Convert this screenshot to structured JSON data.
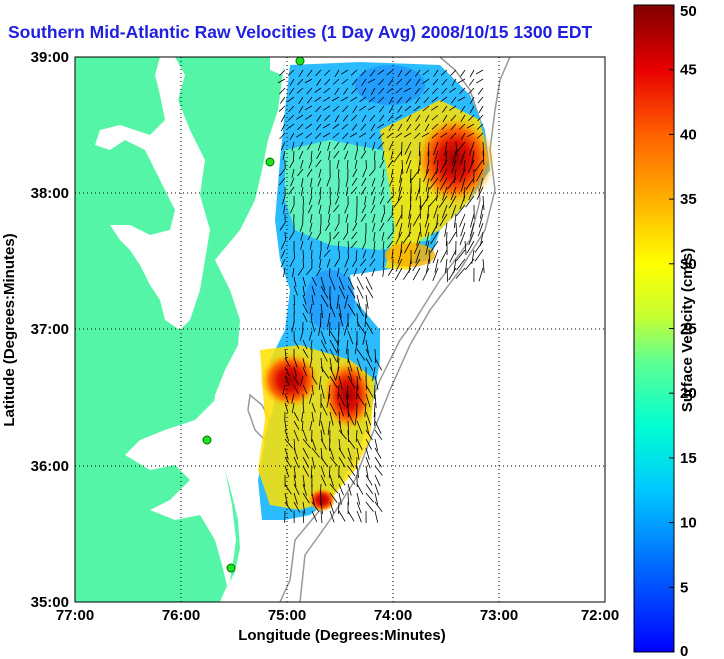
{
  "title": "Southern Mid-Atlantic Raw Velocities (1 Day Avg) 2008/10/15 1300 EDT",
  "map": {
    "x_ticks": [
      "77:00",
      "76:00",
      "75:00",
      "74:00",
      "73:00",
      "72:00"
    ],
    "y_ticks": [
      "39:00",
      "38:00",
      "37:00",
      "36:00",
      "35:00"
    ],
    "xlabel": "Longitude (Degrees:Minutes)",
    "ylabel": "Latitude (Degrees:Minutes)",
    "lon_range": [
      -77,
      -72
    ],
    "lat_range": [
      35,
      39
    ],
    "land_color": "#55f5a8",
    "grid": "dotted"
  },
  "colorbar": {
    "label": "Surface Velocity (cm/s)",
    "ticks": [
      "0",
      "5",
      "10",
      "15",
      "20",
      "25",
      "30",
      "35",
      "40",
      "45",
      "50"
    ],
    "min": 0,
    "max": 50,
    "colormap": "jet"
  }
}
